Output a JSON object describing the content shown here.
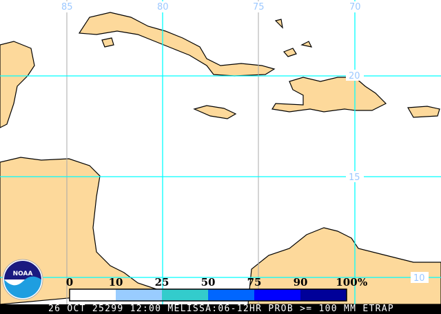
{
  "map": {
    "lat_labels": [
      "20",
      "15",
      "10"
    ],
    "lon_labels": [
      "85",
      "80",
      "75",
      "70"
    ],
    "land_color": "#fdd99b",
    "grid_color": "#00ffff"
  },
  "legend": {
    "labels": [
      "0",
      "10",
      "25",
      "50",
      "75",
      "90",
      "100"
    ],
    "unit": "%",
    "colors": [
      "#ffffff",
      "#99ccff",
      "#33cccc",
      "#0066ff",
      "#0000ff",
      "#000099"
    ]
  },
  "logo": "NOAA",
  "footer": "26 OCT 25299 12:00 MELISSA:06-12HR PROB >= 100 MM ETRAP"
}
